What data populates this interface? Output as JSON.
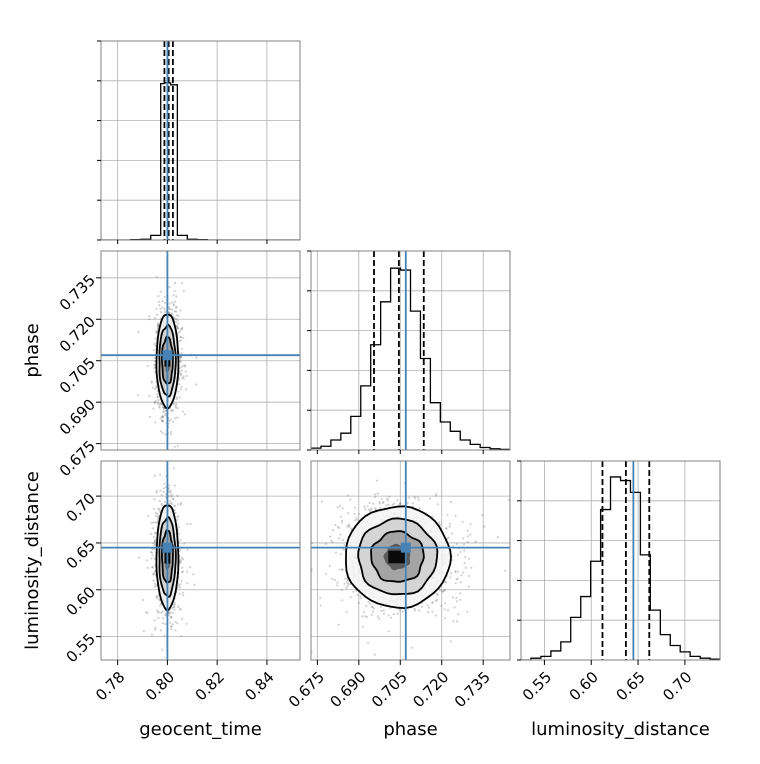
{
  "chart_data": {
    "type": "corner",
    "params": [
      "geocent_time",
      "phase",
      "luminosity_distance"
    ],
    "labels": {
      "geocent_time": "geocent_time",
      "phase": "phase",
      "luminosity_distance": "luminosity_distance"
    },
    "ranges": {
      "geocent_time": [
        0.7733,
        0.8533
      ],
      "phase": [
        0.6727,
        0.7447
      ],
      "luminosity_distance": [
        0.525,
        0.7375
      ]
    },
    "ticks": {
      "geocent_time": {
        "values": [
          0.78,
          0.8,
          0.82,
          0.84
        ],
        "labels": [
          "0.78",
          "0.80",
          "0.82",
          "0.84"
        ]
      },
      "phase": {
        "values": [
          0.675,
          0.69,
          0.705,
          0.72,
          0.735
        ],
        "labels": [
          "0.675",
          "0.690",
          "0.705",
          "0.720",
          "0.735"
        ]
      },
      "luminosity_distance": {
        "values": [
          0.55,
          0.6,
          0.65,
          0.7
        ],
        "labels": [
          "0.55",
          "0.60",
          "0.65",
          "0.70"
        ]
      }
    },
    "truths": {
      "geocent_time": 0.8,
      "phase": 0.707,
      "luminosity_distance": 0.645
    },
    "quantiles": {
      "geocent_time": [
        0.7988,
        0.8005,
        0.8022
      ],
      "phase": [
        0.6955,
        0.7045,
        0.7135
      ],
      "luminosity_distance": [
        0.612,
        0.637,
        0.662
      ]
    },
    "histograms": {
      "geocent_time": {
        "edges": [
          0.7733,
          0.7773,
          0.7813,
          0.7853,
          0.7893,
          0.7933,
          0.7973,
          0.7987,
          0.8013,
          0.804,
          0.808,
          0.812,
          0.816,
          0.82,
          0.824,
          0.828,
          0.832,
          0.836,
          0.84,
          0.844,
          0.848,
          0.8533
        ],
        "counts": [
          0,
          0,
          0,
          1,
          2,
          12,
          405,
          407,
          402,
          12,
          2,
          1,
          0,
          0,
          0,
          0,
          0,
          0,
          0,
          0,
          0
        ],
        "ymax": 500
      },
      "phase": {
        "edges": [
          0.6727,
          0.6763,
          0.6799,
          0.6835,
          0.6871,
          0.6907,
          0.6943,
          0.6979,
          0.7015,
          0.7051,
          0.7087,
          0.7123,
          0.7159,
          0.7195,
          0.7231,
          0.7267,
          0.7303,
          0.7339,
          0.7375,
          0.7411,
          0.7447
        ],
        "counts": [
          3,
          6,
          16,
          27,
          54,
          103,
          169,
          238,
          292,
          289,
          223,
          147,
          76,
          45,
          30,
          16,
          9,
          4,
          2,
          1
        ],
        "ymax": 310
      },
      "luminosity_distance": {
        "edges": [
          0.525,
          0.5356,
          0.5463,
          0.5569,
          0.5675,
          0.5781,
          0.5888,
          0.5994,
          0.61,
          0.6206,
          0.6313,
          0.6419,
          0.6525,
          0.6631,
          0.6738,
          0.6844,
          0.695,
          0.7056,
          0.7163,
          0.7269,
          0.7375
        ],
        "counts": [
          0,
          2,
          4,
          10,
          20,
          47,
          70,
          109,
          166,
          202,
          198,
          185,
          116,
          55,
          28,
          16,
          9,
          4,
          2,
          1
        ],
        "ymax": 213
      }
    },
    "density_2d": {
      "phase_vs_geocent_time": {
        "x": "geocent_time",
        "y": "phase",
        "center": [
          0.8,
          0.705
        ],
        "sigma": [
          0.0022,
          0.0085
        ],
        "contour_levels_sigma": [
          0.5,
          1.0,
          1.5,
          2.0
        ]
      },
      "luminosity_distance_vs_geocent_time": {
        "x": "geocent_time",
        "y": "luminosity_distance",
        "center": [
          0.8,
          0.635
        ],
        "sigma": [
          0.0022,
          0.028
        ],
        "contour_levels_sigma": [
          0.5,
          1.0,
          1.5,
          2.0
        ]
      },
      "luminosity_distance_vs_phase": {
        "x": "phase",
        "y": "luminosity_distance",
        "center": [
          0.704,
          0.635
        ],
        "sigma": [
          0.0095,
          0.027
        ],
        "contour_levels_sigma": [
          0.5,
          1.0,
          1.5,
          2.0
        ]
      }
    },
    "grid": true,
    "colors": {
      "truth_line": "#4682b4",
      "hist_line": "#000000",
      "quantile_line": "#000000",
      "grid": "#b0b0b0",
      "frame": "#808080"
    }
  }
}
